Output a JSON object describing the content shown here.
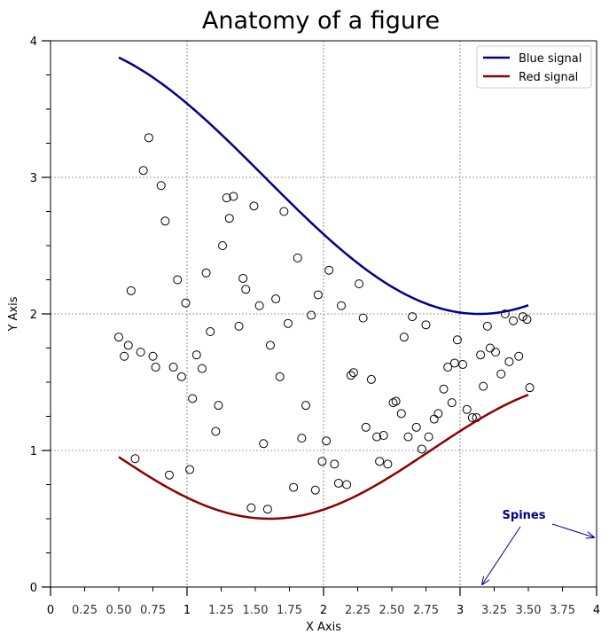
{
  "chart_data": {
    "type": "line",
    "title": "Anatomy of a figure",
    "xlabel": "X Axis",
    "ylabel": "Y Axis",
    "xlim": [
      0,
      4
    ],
    "ylim": [
      0,
      4
    ],
    "grid": true,
    "legend_position": "top-right",
    "x_major_ticks": [
      {
        "value": 0,
        "label": "0"
      },
      {
        "value": 1,
        "label": "1"
      },
      {
        "value": 2,
        "label": "2"
      },
      {
        "value": 3,
        "label": "3"
      },
      {
        "value": 4,
        "label": "4"
      }
    ],
    "x_minor_ticks": [
      {
        "value": 0.25,
        "label": "0.25"
      },
      {
        "value": 0.5,
        "label": "0.50"
      },
      {
        "value": 0.75,
        "label": "0.75"
      },
      {
        "value": 1.25,
        "label": "1.25"
      },
      {
        "value": 1.5,
        "label": "1.50"
      },
      {
        "value": 1.75,
        "label": "1.75"
      },
      {
        "value": 2.25,
        "label": "2.25"
      },
      {
        "value": 2.5,
        "label": "2.50"
      },
      {
        "value": 2.75,
        "label": "2.75"
      },
      {
        "value": 3.25,
        "label": "3.25"
      },
      {
        "value": 3.5,
        "label": "3.50"
      },
      {
        "value": 3.75,
        "label": "3.75"
      }
    ],
    "y_major_ticks": [
      {
        "value": 0,
        "label": "0"
      },
      {
        "value": 1,
        "label": "1"
      },
      {
        "value": 2,
        "label": "2"
      },
      {
        "value": 3,
        "label": "3"
      },
      {
        "value": 4,
        "label": "4"
      }
    ],
    "y_minor_ticks": [
      0.25,
      0.5,
      0.75,
      1.25,
      1.5,
      1.75,
      2.25,
      2.5,
      2.75,
      3.25,
      3.5,
      3.75
    ],
    "series": [
      {
        "name": "Blue signal",
        "color": "#00008b",
        "x_range": [
          0.5,
          3.5
        ],
        "formula": "3 + cos(x)"
      },
      {
        "name": "Red signal",
        "color": "#8b0000",
        "x_range": [
          0.5,
          3.5
        ],
        "formula": "1 + cos(1 + x/0.75)/2"
      }
    ],
    "scatter": {
      "name": "points",
      "marker": "open-circle",
      "points": [
        [
          0.72,
          3.29
        ],
        [
          0.68,
          3.05
        ],
        [
          0.81,
          2.94
        ],
        [
          0.84,
          2.68
        ],
        [
          0.93,
          2.25
        ],
        [
          0.59,
          2.17
        ],
        [
          0.99,
          2.08
        ],
        [
          1.14,
          2.3
        ],
        [
          1.29,
          2.85
        ],
        [
          1.34,
          2.86
        ],
        [
          1.31,
          2.7
        ],
        [
          1.49,
          2.79
        ],
        [
          1.71,
          2.75
        ],
        [
          1.26,
          2.5
        ],
        [
          1.41,
          2.26
        ],
        [
          1.43,
          2.18
        ],
        [
          1.53,
          2.06
        ],
        [
          1.65,
          2.11
        ],
        [
          1.81,
          2.41
        ],
        [
          2.04,
          2.32
        ],
        [
          1.96,
          2.14
        ],
        [
          2.13,
          2.06
        ],
        [
          2.26,
          2.22
        ],
        [
          2.29,
          1.97
        ],
        [
          1.91,
          1.99
        ],
        [
          1.74,
          1.93
        ],
        [
          1.38,
          1.91
        ],
        [
          1.17,
          1.87
        ],
        [
          0.5,
          1.83
        ],
        [
          0.57,
          1.77
        ],
        [
          0.66,
          1.72
        ],
        [
          0.54,
          1.69
        ],
        [
          0.75,
          1.69
        ],
        [
          0.77,
          1.61
        ],
        [
          0.9,
          1.61
        ],
        [
          0.96,
          1.54
        ],
        [
          1.07,
          1.7
        ],
        [
          1.11,
          1.6
        ],
        [
          1.61,
          1.77
        ],
        [
          1.68,
          1.54
        ],
        [
          2.2,
          1.55
        ],
        [
          2.22,
          1.57
        ],
        [
          2.35,
          1.52
        ],
        [
          2.59,
          1.83
        ],
        [
          2.65,
          1.98
        ],
        [
          2.75,
          1.92
        ],
        [
          2.98,
          1.81
        ],
        [
          3.2,
          1.91
        ],
        [
          3.33,
          2.0
        ],
        [
          3.39,
          1.95
        ],
        [
          3.46,
          1.98
        ],
        [
          3.49,
          1.96
        ],
        [
          3.22,
          1.75
        ],
        [
          3.26,
          1.72
        ],
        [
          3.43,
          1.69
        ],
        [
          3.15,
          1.7
        ],
        [
          2.91,
          1.61
        ],
        [
          2.96,
          1.64
        ],
        [
          3.02,
          1.63
        ],
        [
          3.36,
          1.65
        ],
        [
          3.3,
          1.56
        ],
        [
          3.17,
          1.47
        ],
        [
          3.51,
          1.46
        ],
        [
          2.88,
          1.45
        ],
        [
          2.94,
          1.35
        ],
        [
          2.51,
          1.35
        ],
        [
          2.53,
          1.36
        ],
        [
          2.57,
          1.27
        ],
        [
          2.84,
          1.27
        ],
        [
          2.81,
          1.23
        ],
        [
          3.05,
          1.3
        ],
        [
          3.09,
          1.24
        ],
        [
          3.12,
          1.24
        ],
        [
          1.04,
          1.38
        ],
        [
          1.23,
          1.33
        ],
        [
          1.87,
          1.33
        ],
        [
          2.31,
          1.17
        ],
        [
          2.68,
          1.17
        ],
        [
          2.39,
          1.1
        ],
        [
          2.44,
          1.11
        ],
        [
          2.62,
          1.1
        ],
        [
          2.77,
          1.1
        ],
        [
          1.21,
          1.14
        ],
        [
          1.56,
          1.05
        ],
        [
          1.84,
          1.09
        ],
        [
          2.02,
          1.07
        ],
        [
          2.72,
          1.01
        ],
        [
          0.62,
          0.94
        ],
        [
          0.87,
          0.82
        ],
        [
          1.02,
          0.86
        ],
        [
          1.99,
          0.92
        ],
        [
          2.08,
          0.9
        ],
        [
          2.41,
          0.92
        ],
        [
          2.47,
          0.9
        ],
        [
          2.11,
          0.76
        ],
        [
          2.17,
          0.75
        ],
        [
          1.78,
          0.73
        ],
        [
          1.94,
          0.71
        ],
        [
          1.47,
          0.58
        ],
        [
          1.59,
          0.57
        ]
      ]
    },
    "annotations": [
      {
        "text": "Spines",
        "color": "#00008b",
        "arrows_to": [
          "bottom spine",
          "right spine"
        ]
      }
    ]
  }
}
